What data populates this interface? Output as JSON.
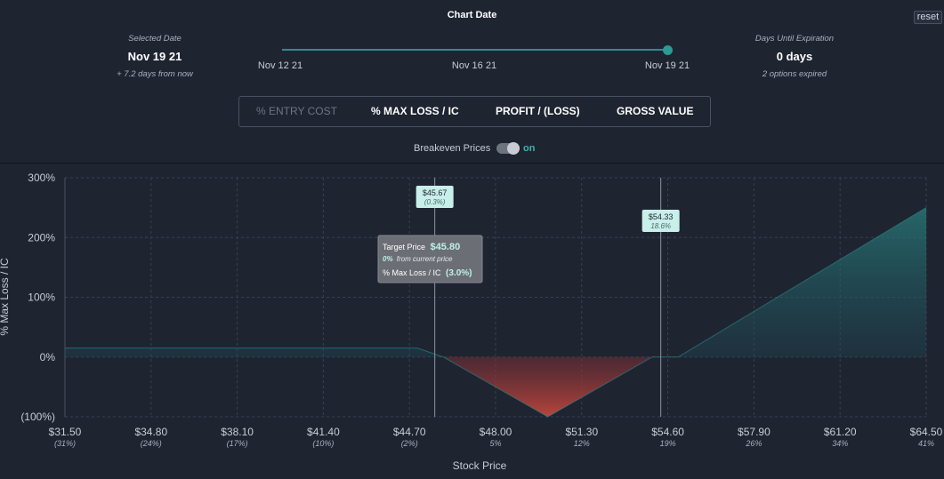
{
  "header": {
    "title": "Chart Date",
    "reset_label": "reset"
  },
  "selected": {
    "caption": "Selected Date",
    "value": "Nov 19 21",
    "note": "+ 7.2 days from now"
  },
  "expiration": {
    "caption": "Days Until Expiration",
    "value": "0 days",
    "note": "2 options expired"
  },
  "slider": {
    "labels": [
      "Nov 12 21",
      "Nov 16 21",
      "Nov 19 21"
    ],
    "position": 1.0
  },
  "tabs": [
    {
      "label": "% ENTRY COST",
      "active": false
    },
    {
      "label": "% MAX LOSS / IC",
      "active": true
    },
    {
      "label": "PROFIT / (LOSS)",
      "active": false
    },
    {
      "label": "GROSS VALUE",
      "active": false
    }
  ],
  "breakeven": {
    "label": "Breakeven Prices",
    "state": "on"
  },
  "colors": {
    "teal": "#2c8e8a",
    "red": "#a8423a",
    "badge": "#c8efe9"
  },
  "tooltip": {
    "prefix": "Target Price",
    "price": "$45.80",
    "pct": "0%",
    "pct_suffix": "from current price",
    "metric_label": "% Max Loss / IC",
    "metric_value": "(3.0%)"
  },
  "chart_data": {
    "type": "area",
    "ylabel": "% Max Loss / IC",
    "xlabel": "Stock Price",
    "xlim": [
      31.5,
      64.5
    ],
    "ylim": [
      -100,
      300
    ],
    "y_ticks": [
      {
        "value": 300,
        "label": "300%"
      },
      {
        "value": 200,
        "label": "200%"
      },
      {
        "value": 100,
        "label": "100%"
      },
      {
        "value": 0,
        "label": "0%"
      },
      {
        "value": -100,
        "label": "(100%)"
      }
    ],
    "x_ticks": [
      {
        "value": 31.5,
        "label": "$31.50",
        "sub": "(31%)"
      },
      {
        "value": 34.8,
        "label": "$34.80",
        "sub": "(24%)"
      },
      {
        "value": 38.1,
        "label": "$38.10",
        "sub": "(17%)"
      },
      {
        "value": 41.4,
        "label": "$41.40",
        "sub": "(10%)"
      },
      {
        "value": 44.7,
        "label": "$44.70",
        "sub": "(2%)"
      },
      {
        "value": 48.0,
        "label": "$48.00",
        "sub": "5%"
      },
      {
        "value": 51.3,
        "label": "$51.30",
        "sub": "12%"
      },
      {
        "value": 54.6,
        "label": "$54.60",
        "sub": "19%"
      },
      {
        "value": 57.9,
        "label": "$57.90",
        "sub": "26%"
      },
      {
        "value": 61.2,
        "label": "$61.20",
        "sub": "34%"
      },
      {
        "value": 64.5,
        "label": "$64.50",
        "sub": "41%"
      }
    ],
    "series": [
      {
        "x": [
          31.5,
          45.0,
          46.0,
          50.0,
          54.0,
          55.0,
          64.5
        ],
        "y": [
          15,
          15,
          0,
          -100,
          0,
          0,
          250
        ]
      }
    ],
    "breakevens": [
      {
        "price": 45.67,
        "label": "$45.67",
        "sub": "(0.3%)"
      },
      {
        "price": 54.33,
        "label": "$54.33",
        "sub": "18.6%"
      }
    ]
  }
}
